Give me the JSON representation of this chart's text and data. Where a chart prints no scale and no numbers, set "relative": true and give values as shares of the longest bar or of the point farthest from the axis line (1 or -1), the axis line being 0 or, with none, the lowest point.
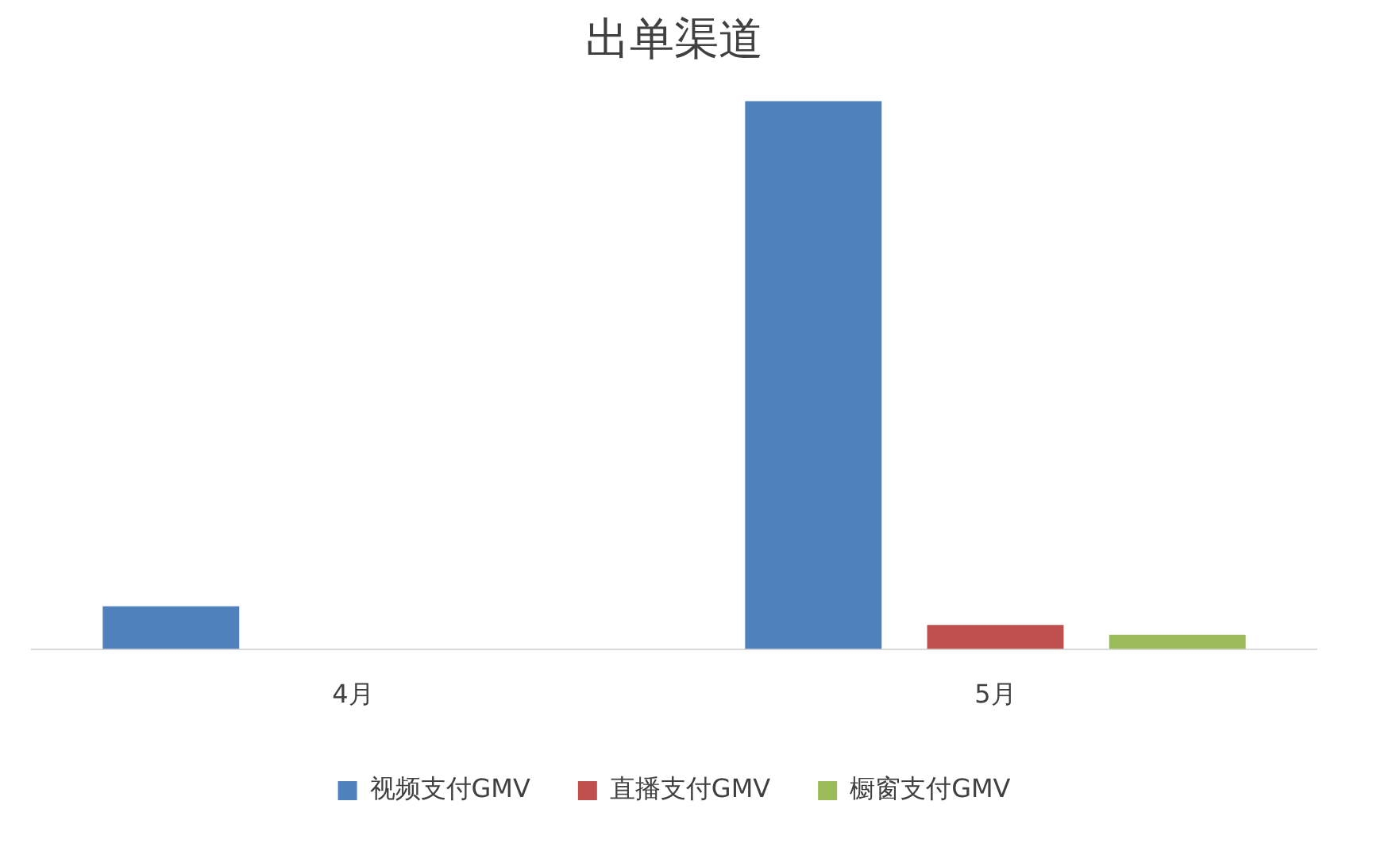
{
  "chart_data": {
    "type": "bar",
    "title": "出单渠道",
    "categories": [
      "4月",
      "5月"
    ],
    "relative": true,
    "legend": "bottom",
    "series": [
      {
        "name": "视频支付GMV",
        "color": "#4f81bd",
        "values": [
          0.078,
          1
        ]
      },
      {
        "name": "直播支付GMV",
        "color": "#c0504d",
        "values": [
          0,
          0.044
        ]
      },
      {
        "name": "橱窗支付GMV",
        "color": "#9bbb59",
        "values": [
          0,
          0.026
        ]
      }
    ]
  }
}
